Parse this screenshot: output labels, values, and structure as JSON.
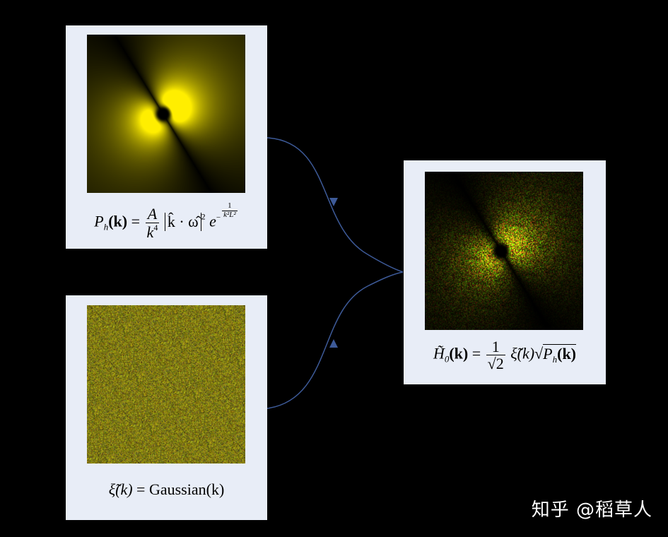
{
  "panels": {
    "spectrum": {
      "formula": {
        "lhs_symbol": "P",
        "lhs_sub": "h",
        "lhs_arg": "(k)",
        "equals": "=",
        "num": "A",
        "den": "k",
        "den_pow": "4",
        "abs_content": "k̂ · ω̂",
        "abs_pow": "2",
        "exp_base": "e",
        "exp_sign": "−",
        "exp_num": "1",
        "exp_den": "k²L²"
      }
    },
    "noise": {
      "formula": {
        "lhs": "ξ̃(k)",
        "equals": "=",
        "rhs": "Gaussian(k)"
      }
    },
    "result": {
      "formula": {
        "lhs_symbol": "H̃",
        "lhs_sub": "0",
        "lhs_arg": "(k)",
        "equals": "=",
        "num": "1",
        "den": "√2",
        "factor": "ξ̃(k)",
        "sqrt_sym": "√",
        "sqrt_content": "P",
        "sqrt_sub": "h",
        "sqrt_arg": "(k)"
      }
    }
  },
  "colors": {
    "card": "#e8edf7",
    "arrow": "#3d5a98",
    "glow": "#ffee00",
    "noise_base": "#8a8a1e"
  },
  "watermark": "知乎 @稻草人"
}
